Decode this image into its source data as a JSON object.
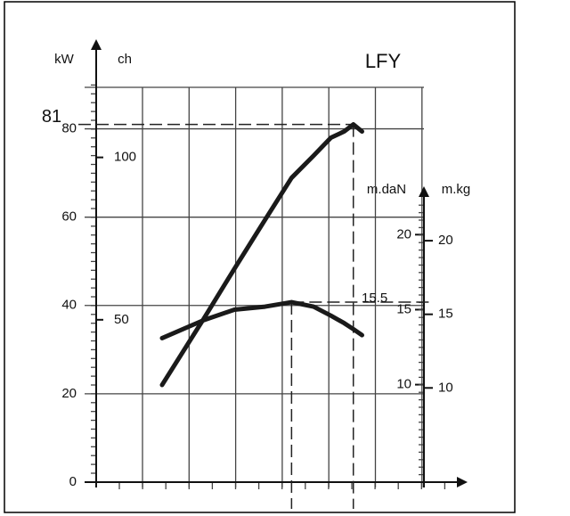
{
  "chart_data": {
    "type": "line",
    "title": "LFY",
    "x": [
      1.44,
      2.35,
      3.02,
      3.69,
      4.27,
      4.75,
      5.13,
      5.42,
      5.62,
      5.81
    ],
    "xlim": [
      0,
      8
    ],
    "ylabel": "kW",
    "ylim": [
      0,
      90
    ],
    "yticks": [
      0,
      20,
      40,
      60,
      80
    ],
    "ch_axis": {
      "label": "ch",
      "lim": [
        0,
        122.4
      ],
      "ticks": [
        50,
        100
      ]
    },
    "y2label": "m.daN",
    "y2lim": [
      3.5,
      30
    ],
    "y2ticks": [
      10,
      15,
      20
    ],
    "kg_axis": {
      "label": "m.kg",
      "lim": [
        3.6,
        30.6
      ],
      "ticks": [
        10,
        15,
        20
      ]
    },
    "series": [
      {
        "color": "#1a1a1a",
        "values": [
          22,
          37,
          48.3,
          59.4,
          68.9,
          73.9,
          78,
          79.4,
          81,
          79.4
        ]
      },
      {
        "color": "#1a1a1a",
        "axis": "y2",
        "values": [
          13.1,
          14.3,
          15,
          15.2,
          15.5,
          15.2,
          14.6,
          14.1,
          13.7,
          13.3
        ]
      }
    ],
    "annotations": [
      {
        "text": "81",
        "value": 81,
        "axis": "y"
      },
      {
        "text": "15.5",
        "value": 15.5,
        "axis": "y2"
      }
    ],
    "grid": true
  }
}
